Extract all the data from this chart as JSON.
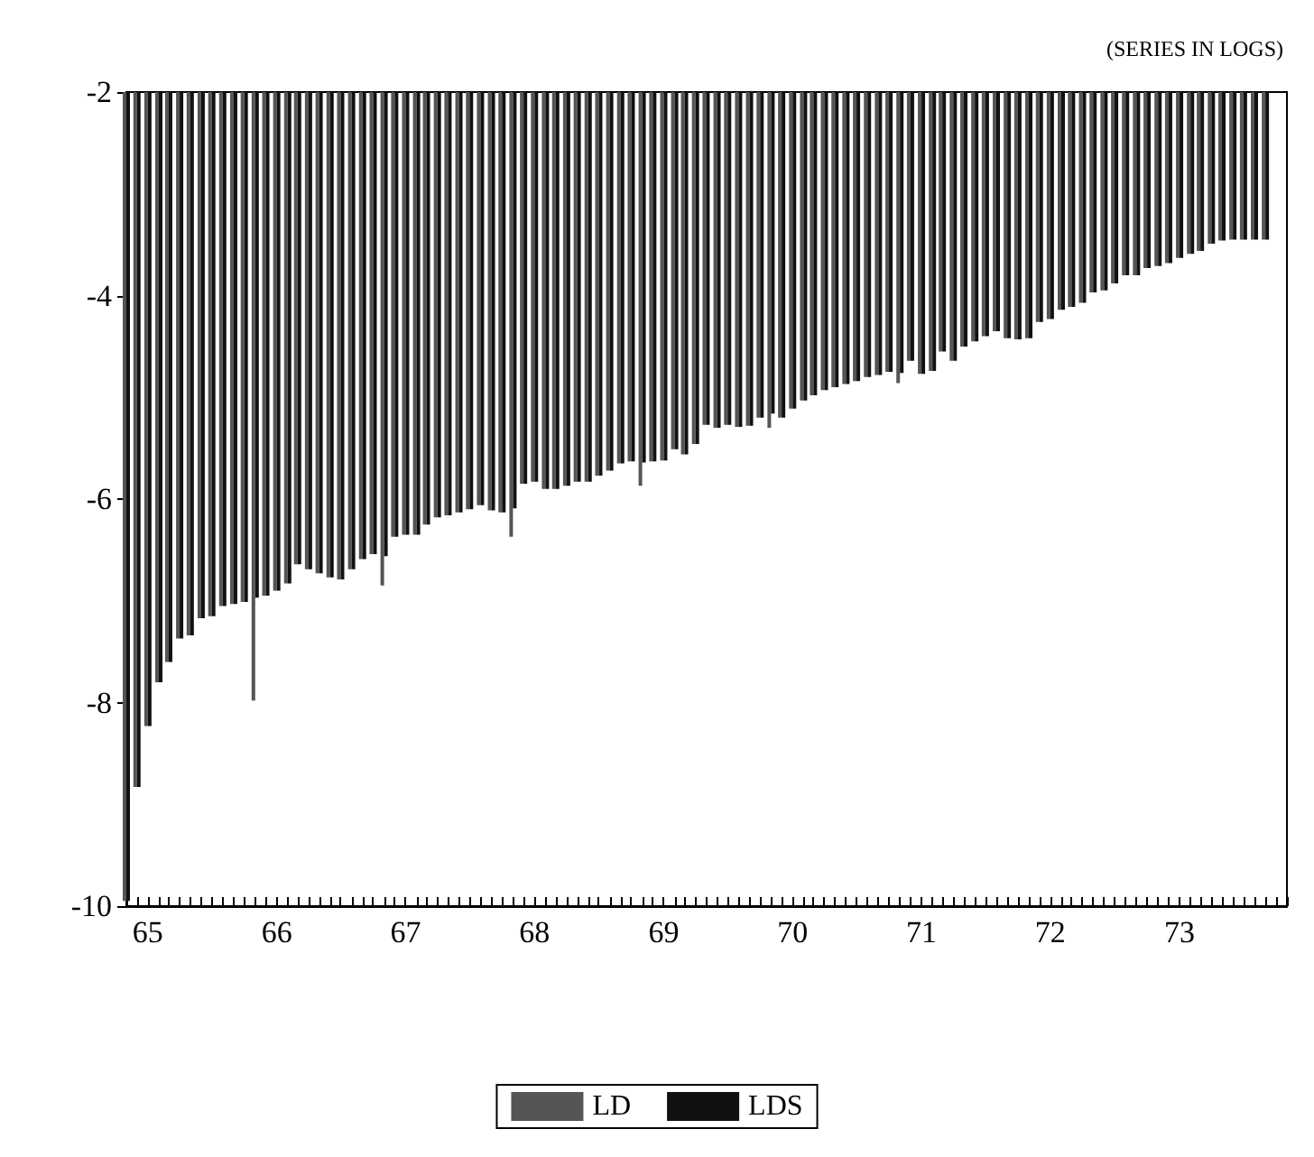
{
  "chart_data": {
    "type": "bar",
    "annotations": [
      "(SERIES IN LOGS)"
    ],
    "x": [
      "1964-11",
      "1964-12",
      "1965-01",
      "1965-02",
      "1965-03",
      "1965-04",
      "1965-05",
      "1965-06",
      "1965-07",
      "1965-08",
      "1965-09",
      "1965-10",
      "1965-11",
      "1965-12",
      "1966-01",
      "1966-02",
      "1966-03",
      "1966-04",
      "1966-05",
      "1966-06",
      "1966-07",
      "1966-08",
      "1966-09",
      "1966-10",
      "1966-11",
      "1966-12",
      "1967-01",
      "1967-02",
      "1967-03",
      "1967-04",
      "1967-05",
      "1967-06",
      "1967-07",
      "1967-08",
      "1967-09",
      "1967-10",
      "1967-11",
      "1967-12",
      "1968-01",
      "1968-02",
      "1968-03",
      "1968-04",
      "1968-05",
      "1968-06",
      "1968-07",
      "1968-08",
      "1968-09",
      "1968-10",
      "1968-11",
      "1968-12",
      "1969-01",
      "1969-02",
      "1969-03",
      "1969-04",
      "1969-05",
      "1969-06",
      "1969-07",
      "1969-08",
      "1969-09",
      "1969-10",
      "1969-11",
      "1969-12",
      "1970-01",
      "1970-02",
      "1970-03",
      "1970-04",
      "1970-05",
      "1970-06",
      "1970-07",
      "1970-08",
      "1970-09",
      "1970-10",
      "1970-11",
      "1970-12",
      "1971-01",
      "1971-02",
      "1971-03",
      "1971-04",
      "1971-05",
      "1971-06",
      "1971-07",
      "1971-08",
      "1971-09",
      "1971-10",
      "1971-11",
      "1971-12",
      "1972-01",
      "1972-02",
      "1972-03",
      "1972-04",
      "1972-05",
      "1972-06",
      "1972-07",
      "1972-08",
      "1972-09",
      "1972-10",
      "1972-11",
      "1972-12",
      "1973-01",
      "1973-02",
      "1973-03",
      "1973-04",
      "1973-05",
      "1973-06",
      "1973-07",
      "1973-08",
      "1973-09"
    ],
    "series": [
      {
        "name": "LD",
        "color": "#555555",
        "values": [
          -9.95,
          -8.83,
          -8.23,
          -7.8,
          -7.6,
          -7.37,
          -7.34,
          -7.17,
          -7.15,
          -7.05,
          -7.03,
          -7.01,
          -7.98,
          -6.95,
          -6.9,
          -6.83,
          -6.64,
          -6.69,
          -6.73,
          -6.77,
          -6.79,
          -6.69,
          -6.59,
          -6.54,
          -6.85,
          -6.37,
          -6.35,
          -6.35,
          -6.25,
          -6.18,
          -6.16,
          -6.13,
          -6.1,
          -6.06,
          -6.11,
          -6.13,
          -6.37,
          -5.85,
          -5.83,
          -5.9,
          -5.9,
          -5.87,
          -5.83,
          -5.83,
          -5.77,
          -5.72,
          -5.65,
          -5.63,
          -5.87,
          -5.63,
          -5.62,
          -5.51,
          -5.56,
          -5.46,
          -5.27,
          -5.3,
          -5.27,
          -5.29,
          -5.28,
          -5.2,
          -5.3,
          -5.2,
          -5.11,
          -5.03,
          -4.98,
          -4.93,
          -4.9,
          -4.87,
          -4.84,
          -4.8,
          -4.78,
          -4.75,
          -4.86,
          -4.64,
          -4.77,
          -4.74,
          -4.55,
          -4.64,
          -4.5,
          -4.45,
          -4.4,
          -4.35,
          -4.42,
          -4.43,
          -4.42,
          -4.26,
          -4.23,
          -4.14,
          -4.11,
          -4.07,
          -3.97,
          -3.95,
          -3.88,
          -3.8,
          -3.8,
          -3.73,
          -3.71,
          -3.68,
          -3.63,
          -3.59,
          -3.56,
          -3.49,
          -3.46,
          -3.45,
          -3.45,
          -3.45,
          -3.45
        ]
      },
      {
        "name": "LDS",
        "color": "#111111",
        "values": [
          -9.95,
          -8.83,
          -8.23,
          -7.8,
          -7.6,
          -7.37,
          -7.34,
          -7.17,
          -7.15,
          -7.05,
          -7.03,
          -7.01,
          -6.97,
          -6.95,
          -6.9,
          -6.83,
          -6.64,
          -6.69,
          -6.73,
          -6.77,
          -6.79,
          -6.69,
          -6.59,
          -6.54,
          -6.56,
          -6.37,
          -6.35,
          -6.35,
          -6.25,
          -6.18,
          -6.16,
          -6.13,
          -6.1,
          -6.06,
          -6.11,
          -6.13,
          -6.09,
          -5.85,
          -5.83,
          -5.9,
          -5.9,
          -5.87,
          -5.83,
          -5.83,
          -5.77,
          -5.72,
          -5.65,
          -5.63,
          -5.64,
          -5.63,
          -5.62,
          -5.51,
          -5.56,
          -5.46,
          -5.27,
          -5.3,
          -5.27,
          -5.29,
          -5.28,
          -5.2,
          -5.16,
          -5.2,
          -5.11,
          -5.03,
          -4.98,
          -4.93,
          -4.9,
          -4.87,
          -4.84,
          -4.8,
          -4.78,
          -4.75,
          -4.76,
          -4.64,
          -4.77,
          -4.74,
          -4.55,
          -4.64,
          -4.5,
          -4.45,
          -4.4,
          -4.35,
          -4.42,
          -4.43,
          -4.42,
          -4.26,
          -4.23,
          -4.14,
          -4.11,
          -4.07,
          -3.97,
          -3.95,
          -3.88,
          -3.8,
          -3.8,
          -3.73,
          -3.71,
          -3.68,
          -3.63,
          -3.59,
          -3.56,
          -3.49,
          -3.46,
          -3.45,
          -3.45,
          -3.45,
          -3.45
        ]
      }
    ],
    "xlim": [
      "1964-11",
      "1973-11"
    ],
    "xticks": [
      {
        "value": "1965-01",
        "label": "65"
      },
      {
        "value": "1966-01",
        "label": "66"
      },
      {
        "value": "1967-01",
        "label": "67"
      },
      {
        "value": "1968-01",
        "label": "68"
      },
      {
        "value": "1969-01",
        "label": "69"
      },
      {
        "value": "1970-01",
        "label": "70"
      },
      {
        "value": "1971-01",
        "label": "71"
      },
      {
        "value": "1972-01",
        "label": "72"
      },
      {
        "value": "1973-01",
        "label": "73"
      }
    ],
    "ylim": [
      -10,
      -2
    ],
    "yticks": [
      -2,
      -4,
      -6,
      -8,
      -10
    ],
    "grid": false,
    "legend": "bottom"
  }
}
